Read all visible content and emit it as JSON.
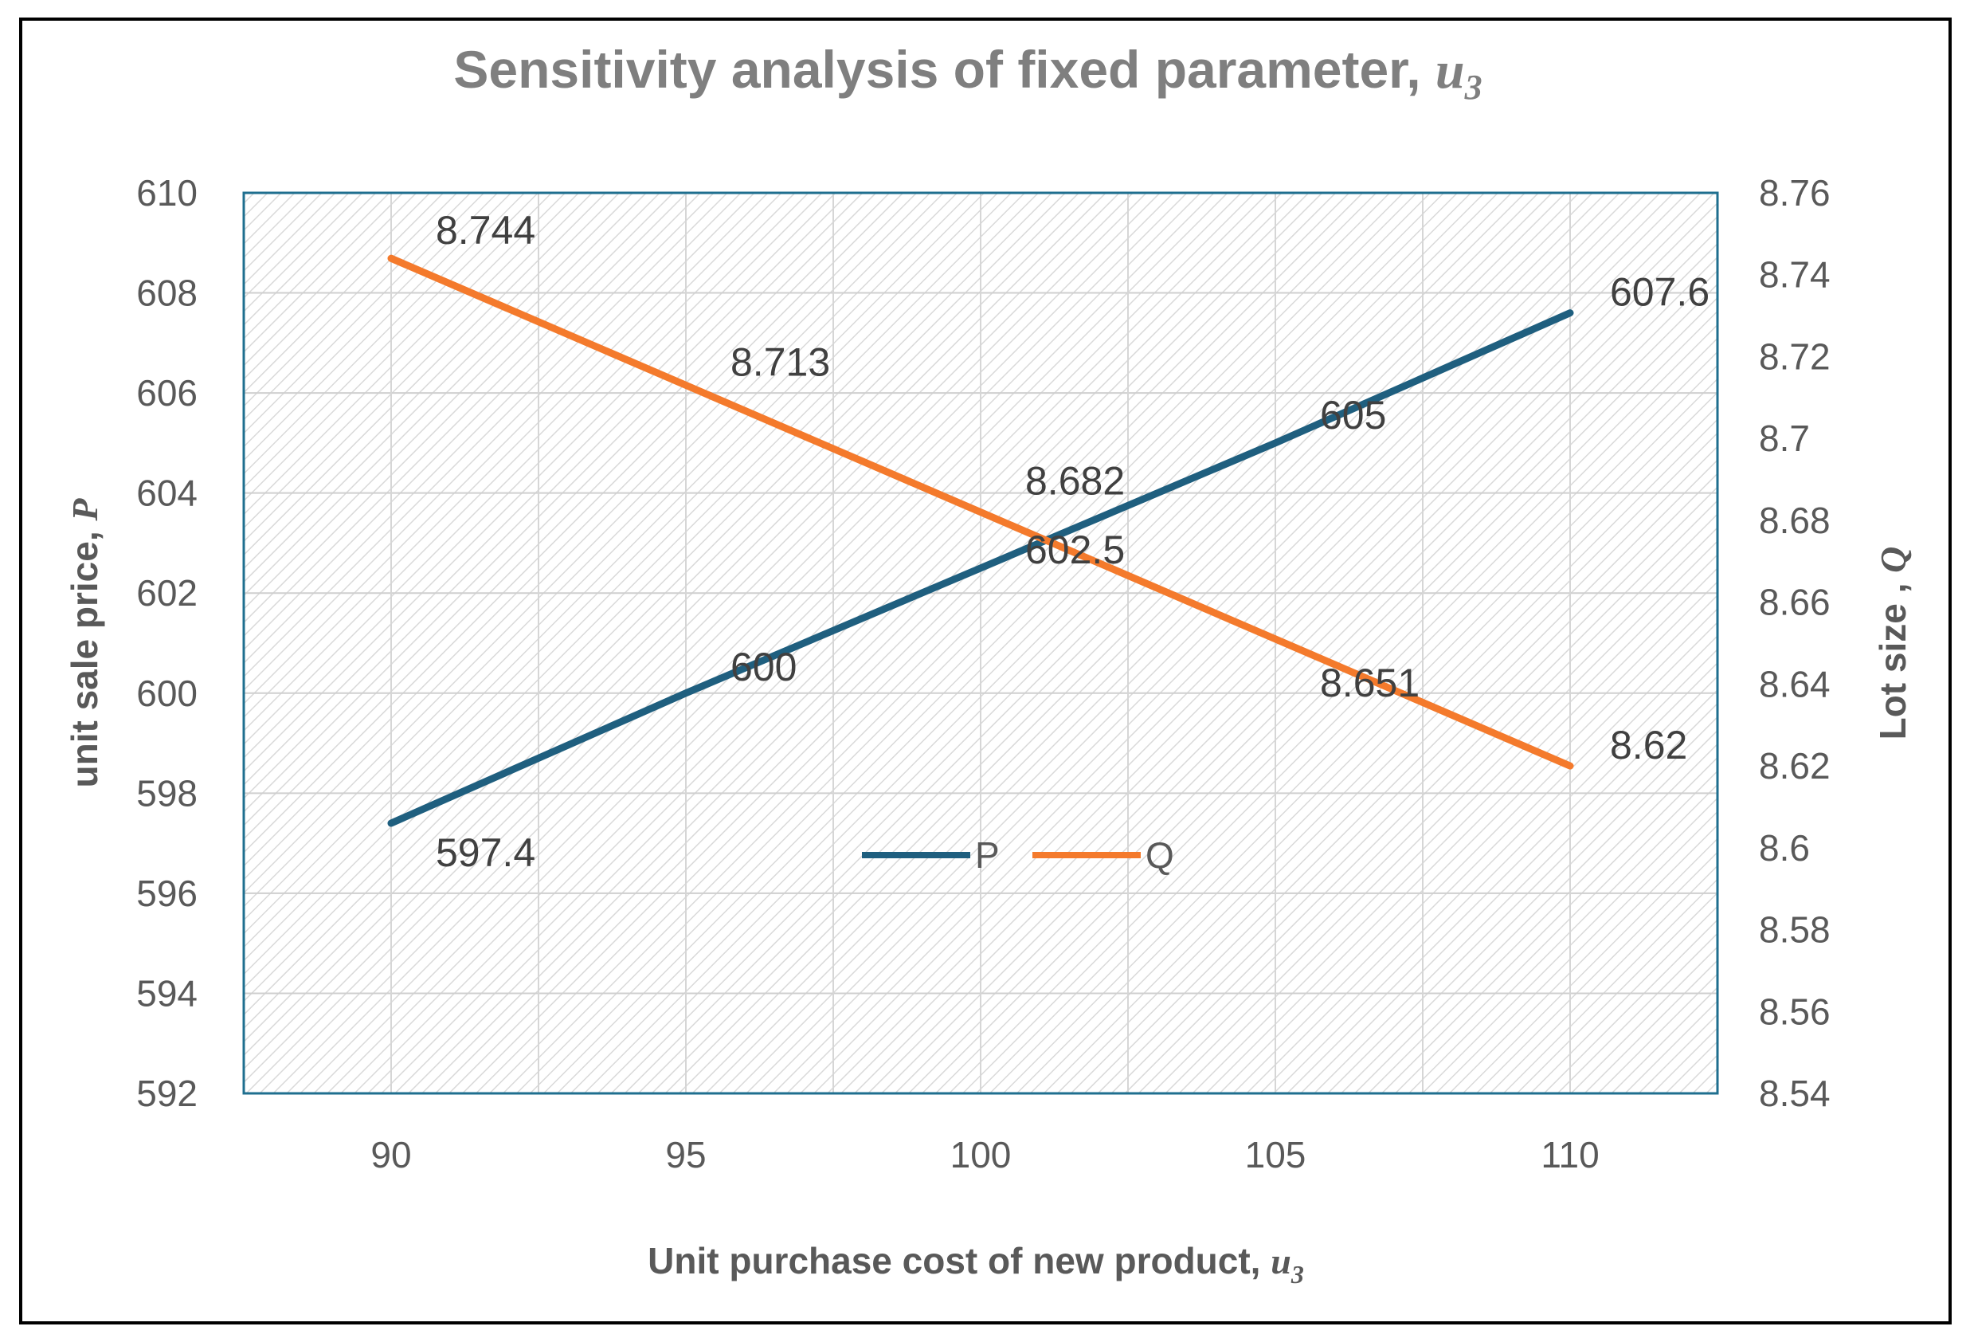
{
  "chart_data": {
    "type": "line",
    "title": "Sensitivity analysis of fixed parameter, ",
    "title_var": "u",
    "title_sub": "3",
    "xlabel": "Unit purchase cost of new product, ",
    "xlabel_var": "u",
    "xlabel_sub": "3",
    "ylabel_left": "unit sale price, ",
    "ylabel_left_var": "P",
    "ylabel_right": "Lot size , ",
    "ylabel_right_var": "Q",
    "x_categories": [
      "90",
      "95",
      "100",
      "105",
      "110"
    ],
    "left_ticks": [
      "610",
      "608",
      "606",
      "604",
      "602",
      "600",
      "598",
      "596",
      "594",
      "592"
    ],
    "right_ticks": [
      "8.76",
      "8.74",
      "8.72",
      "8.7",
      "8.68",
      "8.66",
      "8.64",
      "8.62",
      "8.6",
      "8.58",
      "8.56",
      "8.54"
    ],
    "ylim_left": [
      592,
      610
    ],
    "ylim_right": [
      8.54,
      8.76
    ],
    "series": [
      {
        "name": "P",
        "axis": "left",
        "color": "#1f5f7f",
        "x": [
          90,
          95,
          100,
          105,
          110
        ],
        "values": [
          597.4,
          600,
          602.5,
          605,
          607.6
        ],
        "labels": [
          "597.4",
          "600",
          "602.5",
          "605",
          "607.6"
        ]
      },
      {
        "name": "Q",
        "axis": "right",
        "color": "#f47a2c",
        "x": [
          90,
          95,
          100,
          105,
          110
        ],
        "values": [
          8.744,
          8.713,
          8.682,
          8.651,
          8.62
        ],
        "labels": [
          "8.744",
          "8.713",
          "8.682",
          "8.651",
          "8.62"
        ]
      }
    ],
    "legend_position": "center",
    "grid": true
  }
}
